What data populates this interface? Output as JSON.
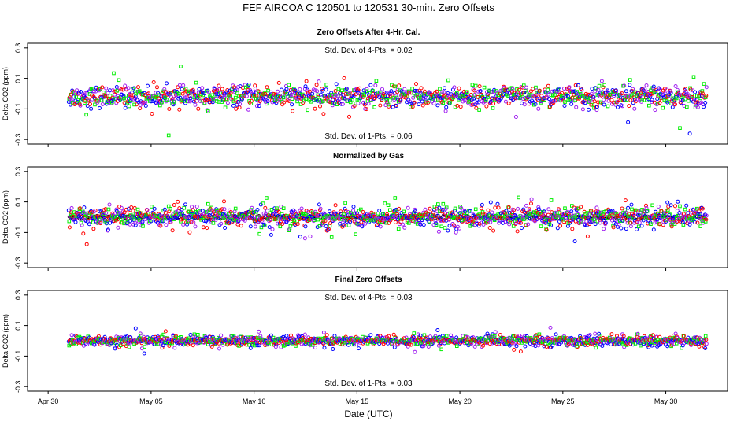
{
  "title": "FEF   AIRCOA C   120501 to 120531   30-min. Zero Offsets",
  "xlabel": "Date (UTC)",
  "x_ticks": [
    "Apr 30",
    "May 05",
    "May 10",
    "May 15",
    "May 20",
    "May 25",
    "May 30"
  ],
  "y_ticks": [
    "0.3",
    "0.1",
    "-0.1",
    "-0.3"
  ],
  "series_colors": [
    "#0000ff",
    "#00ee00",
    "#ff0000",
    "#a020f0"
  ],
  "reference_color": "#000000",
  "panels": [
    {
      "title": "Zero Offsets After 4-Hr. Cal.",
      "ylabel": "Delta CO2 (ppm)",
      "annotation_top": "Std. Dev. of 4-Pts. = 0.02",
      "annotation_bottom": "Std. Dev. of 1-Pts. = 0.06"
    },
    {
      "title": "Normalized by Gas",
      "ylabel": "Delta CO2 (ppm)",
      "annotation_top": "",
      "annotation_bottom": ""
    },
    {
      "title": "Final Zero Offsets",
      "ylabel": "Delta CO2 (ppm)",
      "annotation_top": "Std. Dev. of 4-Pts. = 0.03",
      "annotation_bottom": "Std. Dev. of 1-Pts. = 0.03"
    }
  ],
  "chart_data": [
    {
      "type": "scatter",
      "title": "Zero Offsets After 4-Hr. Cal.",
      "xlabel": "",
      "ylabel": "Delta CO2 (ppm)",
      "xlim": [
        "2012-04-29",
        "2012-06-02"
      ],
      "ylim": [
        -0.33,
        0.33
      ],
      "x_range": [
        "2012-05-01",
        "2012-06-01"
      ],
      "interval_minutes": 30,
      "approx_center": -0.02,
      "approx_spread": 0.06,
      "series_markers": [
        "circle",
        "square",
        "circle",
        "pentagon"
      ],
      "note": "dense 30-min zero offsets for four gases, colors blue/green/red/purple; values mostly between -0.15 and 0.12 ppm"
    },
    {
      "type": "scatter",
      "title": "Normalized by Gas",
      "xlabel": "",
      "ylabel": "Delta CO2 (ppm)",
      "xlim": [
        "2012-04-29",
        "2012-06-02"
      ],
      "ylim": [
        -0.33,
        0.33
      ],
      "x_range": [
        "2012-05-01",
        "2012-06-01"
      ],
      "interval_minutes": 30,
      "approx_center": 0.0,
      "approx_spread": 0.06,
      "reference_band": [
        -0.015,
        0.015
      ],
      "note": "offsets normalized per gas; black reference points clustered near 0"
    },
    {
      "type": "scatter",
      "title": "Final Zero Offsets",
      "xlabel": "Date (UTC)",
      "ylabel": "Delta CO2 (ppm)",
      "xlim": [
        "2012-04-29",
        "2012-06-02"
      ],
      "ylim": [
        -0.33,
        0.33
      ],
      "x_range": [
        "2012-05-01",
        "2012-06-01"
      ],
      "interval_minutes": 30,
      "approx_center": 0.0,
      "approx_spread": 0.03,
      "note": "final offsets tightly grouped around 0 ppm"
    }
  ]
}
